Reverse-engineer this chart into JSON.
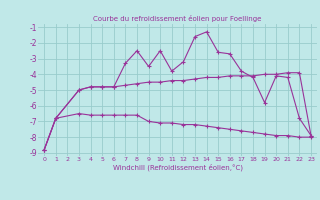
{
  "title": "Courbe du refroidissement éolien pour Foellinge",
  "xlabel": "Windchill (Refroidissement éolien,°C)",
  "xlim": [
    -0.5,
    23.5
  ],
  "ylim": [
    -9.2,
    -0.8
  ],
  "yticks": [
    -9,
    -8,
    -7,
    -6,
    -5,
    -4,
    -3,
    -2,
    -1
  ],
  "xticks": [
    0,
    1,
    2,
    3,
    4,
    5,
    6,
    7,
    8,
    9,
    10,
    11,
    12,
    13,
    14,
    15,
    16,
    17,
    18,
    19,
    20,
    21,
    22,
    23
  ],
  "bg_color": "#c0e8e8",
  "grid_color": "#99cccc",
  "line_color": "#993399",
  "line1_x": [
    0,
    1,
    3,
    4,
    5,
    6,
    7,
    8,
    9,
    10,
    11,
    12,
    13,
    14,
    15,
    16,
    17,
    18,
    19,
    20,
    21,
    22,
    23
  ],
  "line1_y": [
    -8.8,
    -6.8,
    -5.0,
    -4.8,
    -4.8,
    -4.8,
    -3.3,
    -2.5,
    -3.5,
    -2.5,
    -3.8,
    -3.2,
    -1.6,
    -1.3,
    -2.6,
    -2.7,
    -3.8,
    -4.2,
    -5.8,
    -4.1,
    -4.2,
    -6.8,
    -7.9
  ],
  "line2_x": [
    0,
    1,
    3,
    4,
    5,
    6,
    7,
    8,
    9,
    10,
    11,
    12,
    13,
    14,
    15,
    16,
    17,
    18,
    19,
    20,
    21,
    22,
    23
  ],
  "line2_y": [
    -8.8,
    -6.8,
    -5.0,
    -4.8,
    -4.8,
    -4.8,
    -4.7,
    -4.6,
    -4.5,
    -4.5,
    -4.4,
    -4.4,
    -4.3,
    -4.2,
    -4.2,
    -4.1,
    -4.1,
    -4.1,
    -4.0,
    -4.0,
    -3.9,
    -3.9,
    -7.9
  ],
  "line3_x": [
    0,
    1,
    3,
    4,
    5,
    6,
    7,
    8,
    9,
    10,
    11,
    12,
    13,
    14,
    15,
    16,
    17,
    18,
    19,
    20,
    21,
    22,
    23
  ],
  "line3_y": [
    -8.8,
    -6.8,
    -6.5,
    -6.6,
    -6.6,
    -6.6,
    -6.6,
    -6.6,
    -7.0,
    -7.1,
    -7.1,
    -7.2,
    -7.2,
    -7.3,
    -7.4,
    -7.5,
    -7.6,
    -7.7,
    -7.8,
    -7.9,
    -7.9,
    -8.0,
    -8.0
  ]
}
